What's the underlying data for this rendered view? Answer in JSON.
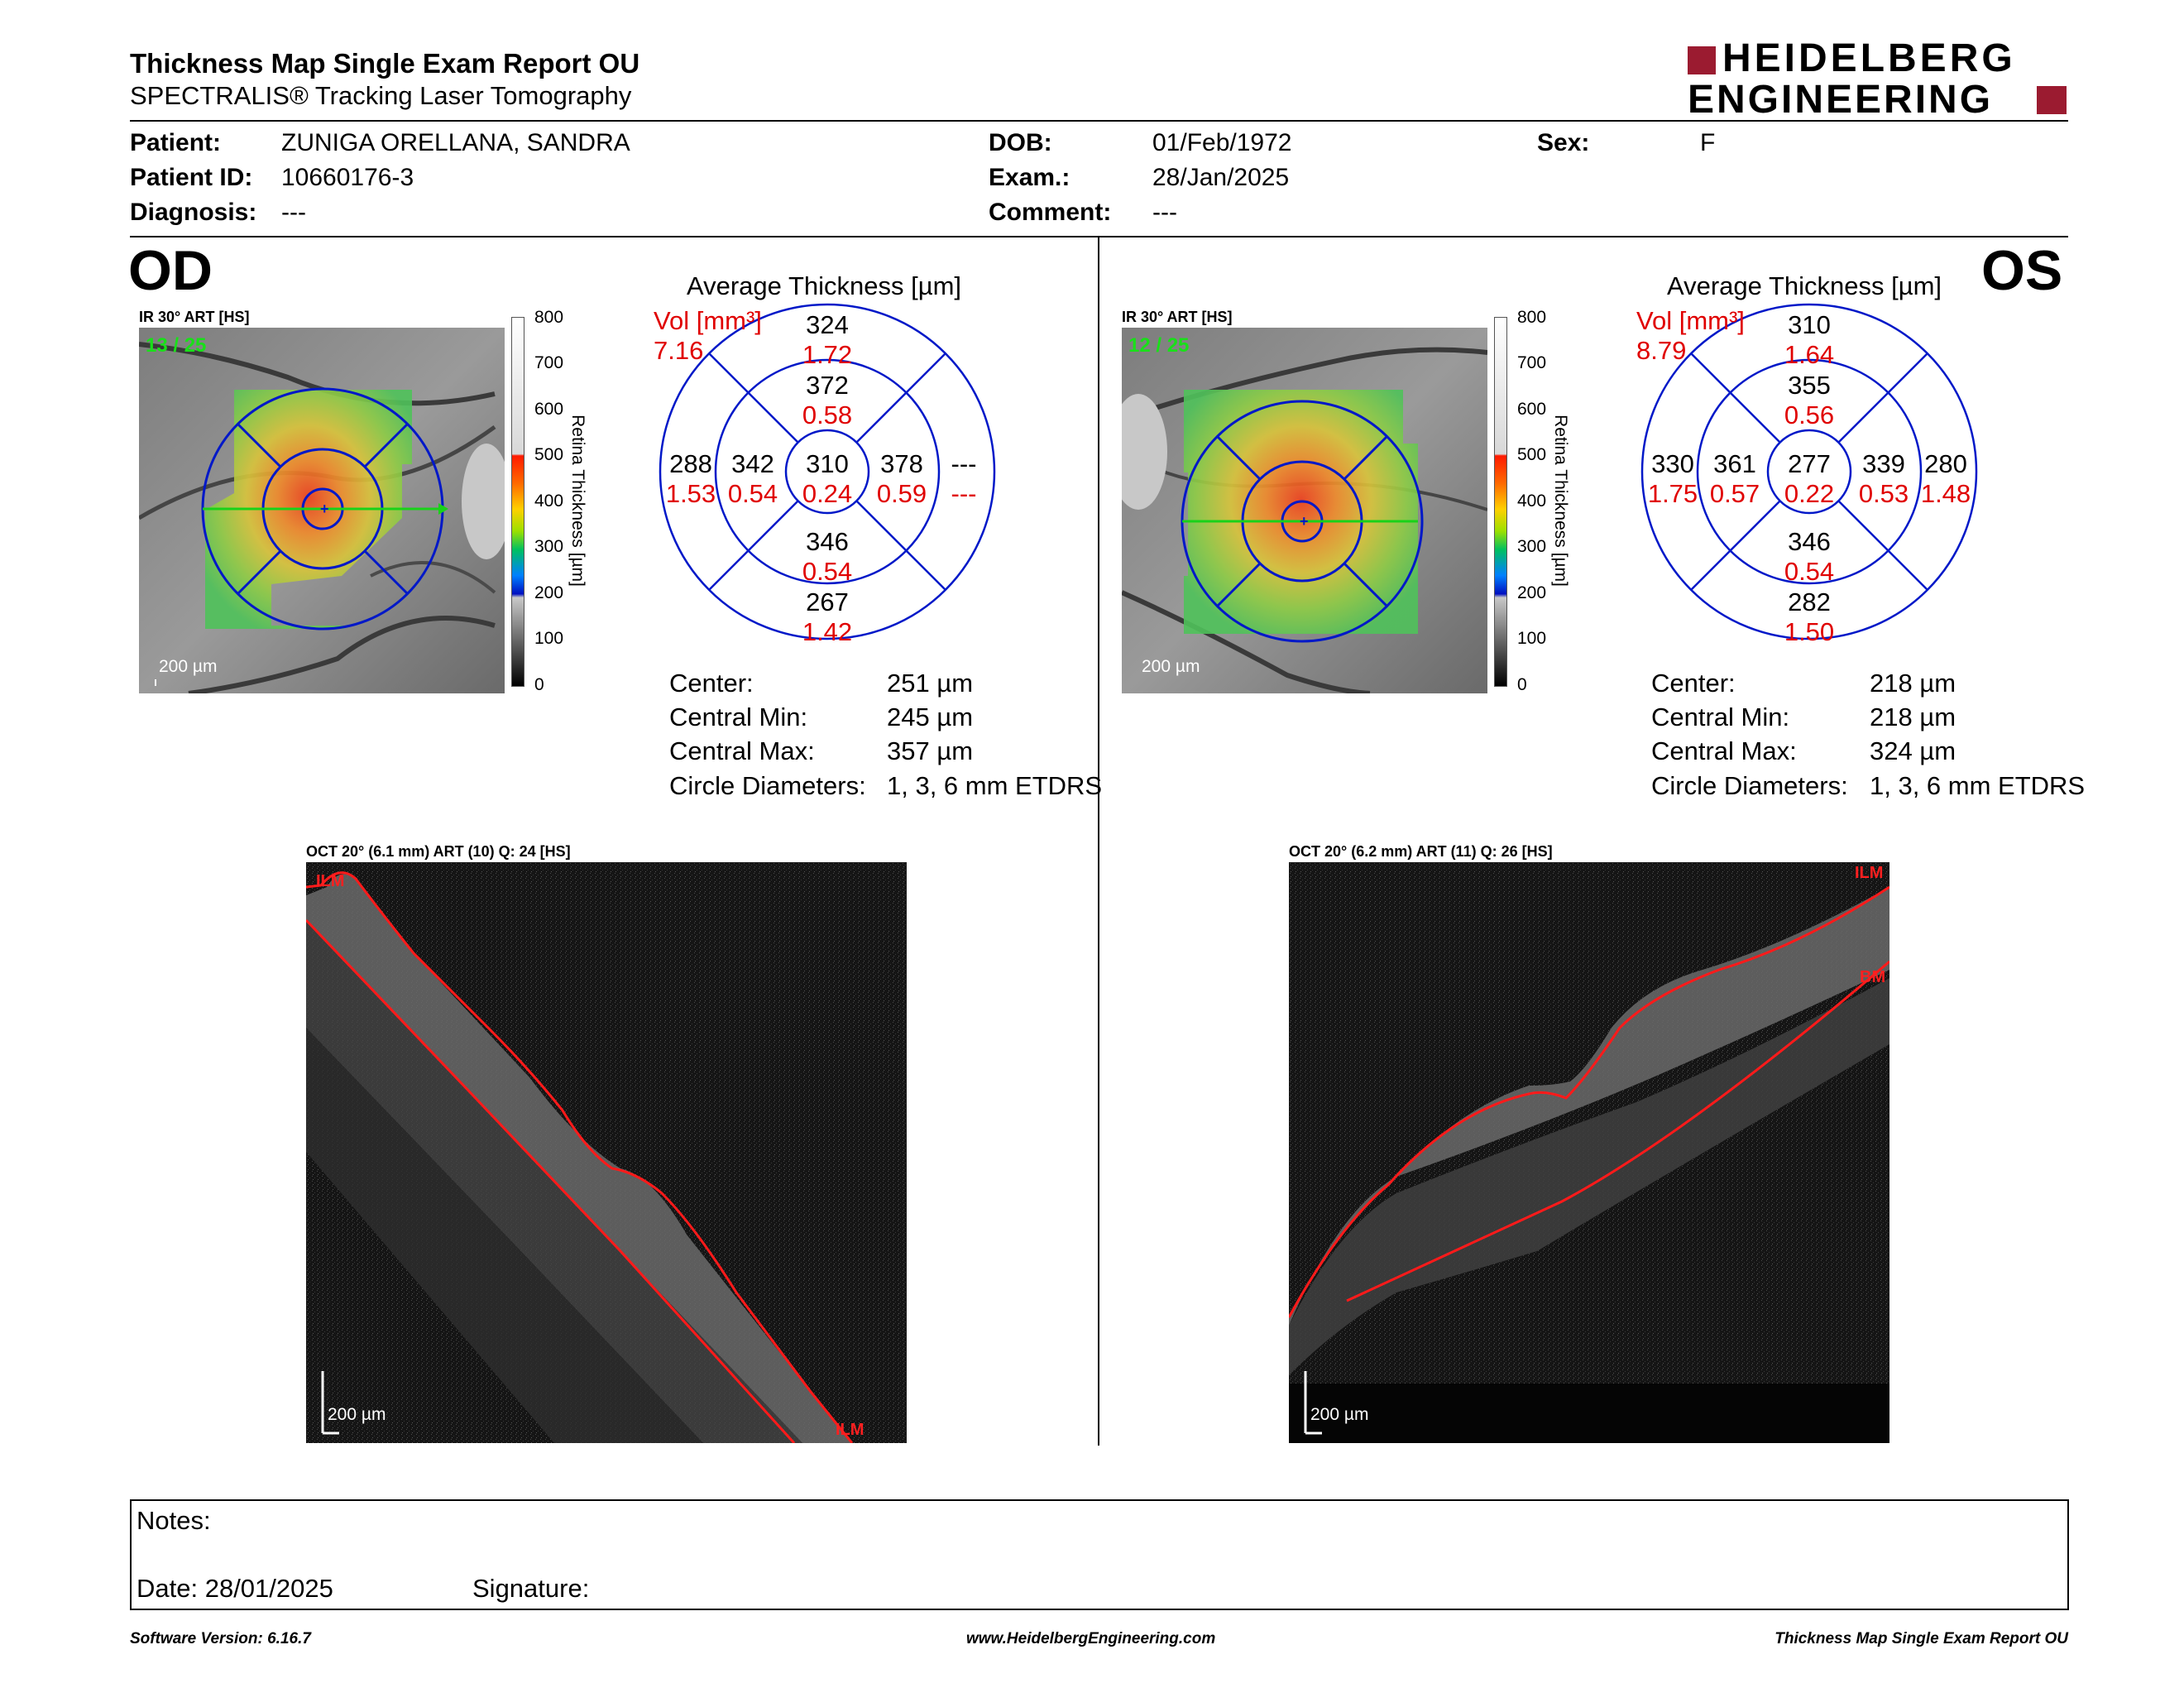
{
  "header": {
    "title": "Thickness Map Single Exam Report OU",
    "subtitle": "SPECTRALIS® Tracking Laser Tomography",
    "logo_line1": "HEIDELBERG",
    "logo_line2": "ENGINEERING",
    "brand_color": "#9b1b30"
  },
  "patient": {
    "patient_label": "Patient:",
    "patient_value": "ZUNIGA ORELLANA, SANDRA",
    "id_label": "Patient ID:",
    "id_value": "10660176-3",
    "diagnosis_label": "Diagnosis:",
    "diagnosis_value": "---",
    "dob_label": "DOB:",
    "dob_value": "01/Feb/1972",
    "exam_label": "Exam.:",
    "exam_value": "28/Jan/2025",
    "comment_label": "Comment:",
    "comment_value": "---",
    "sex_label": "Sex:",
    "sex_value": "F"
  },
  "colorbar": {
    "ticks": [
      "800",
      "700",
      "600",
      "500",
      "400",
      "300",
      "200",
      "100",
      "0"
    ],
    "label": "Retina Thickness [µm]"
  },
  "od": {
    "eye": "OD",
    "ir_title": "IR 30° ART [HS]",
    "frame": "13 / 25",
    "ir_scale": "200 µm",
    "avg_title": "Average Thickness [µm]",
    "vol_label": "Vol [mm³]",
    "vol_total": "7.16",
    "sectors": {
      "center": {
        "t": "310",
        "v": "0.24"
      },
      "inner_sup": {
        "t": "372",
        "v": "0.58"
      },
      "inner_inf": {
        "t": "346",
        "v": "0.54"
      },
      "inner_left": {
        "t": "342",
        "v": "0.54"
      },
      "inner_right": {
        "t": "378",
        "v": "0.59"
      },
      "outer_sup": {
        "t": "324",
        "v": "1.72"
      },
      "outer_inf": {
        "t": "267",
        "v": "1.42"
      },
      "outer_left": {
        "t": "288",
        "v": "1.53"
      },
      "outer_right": {
        "t": "---",
        "v": "---"
      }
    },
    "stats": {
      "center_label": "Center:",
      "center_value": "251 µm",
      "min_label": "Central Min:",
      "min_value": "245 µm",
      "max_label": "Central Max:",
      "max_value": "357 µm",
      "diam_label": "Circle Diameters:",
      "diam_value": "1, 3, 6 mm ETDRS"
    },
    "oct_title": "OCT 20° (6.1 mm) ART (10) Q: 24 [HS]",
    "oct_scale": "200 µm",
    "layer_top": "ILM",
    "layer_bottom": "ILM"
  },
  "os": {
    "eye": "OS",
    "ir_title": "IR 30° ART [HS]",
    "frame": "12 / 25",
    "ir_scale": "200 µm",
    "avg_title": "Average Thickness [µm]",
    "vol_label": "Vol [mm³]",
    "vol_total": "8.79",
    "sectors": {
      "center": {
        "t": "277",
        "v": "0.22"
      },
      "inner_sup": {
        "t": "355",
        "v": "0.56"
      },
      "inner_inf": {
        "t": "346",
        "v": "0.54"
      },
      "inner_left": {
        "t": "361",
        "v": "0.57"
      },
      "inner_right": {
        "t": "339",
        "v": "0.53"
      },
      "outer_sup": {
        "t": "310",
        "v": "1.64"
      },
      "outer_inf": {
        "t": "282",
        "v": "1.50"
      },
      "outer_left": {
        "t": "330",
        "v": "1.75"
      },
      "outer_right": {
        "t": "280",
        "v": "1.48"
      }
    },
    "stats": {
      "center_label": "Center:",
      "center_value": "218 µm",
      "min_label": "Central Min:",
      "min_value": "218 µm",
      "max_label": "Central Max:",
      "max_value": "324 µm",
      "diam_label": "Circle Diameters:",
      "diam_value": "1, 3, 6 mm ETDRS"
    },
    "oct_title": "OCT 20° (6.2 mm) ART (11) Q: 26 [HS]",
    "oct_scale": "200 µm",
    "layer_top": "ILM",
    "layer_bottom": "BM"
  },
  "notes": {
    "notes_label": "Notes:",
    "date_label": "Date: 28/01/2025",
    "signature_label": "Signature:"
  },
  "footer": {
    "software": "Software Version: 6.16.7",
    "website": "www.HeidelbergEngineering.com",
    "report": "Thickness Map Single Exam Report OU"
  }
}
